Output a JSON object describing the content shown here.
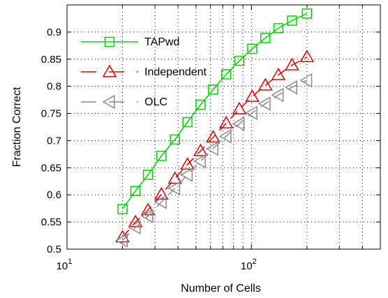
{
  "chart_data": {
    "type": "line",
    "xlabel": "Number of Cells",
    "ylabel": "Fraction Correct",
    "xscale": "log",
    "xlim": [
      10,
      500
    ],
    "ylim": [
      0.5,
      0.95
    ],
    "grid": true,
    "legend_placement": "top-left",
    "x_ticks": [
      {
        "value": 10,
        "base": "10",
        "exp": "1"
      },
      {
        "value": 100,
        "base": "10",
        "exp": "2"
      }
    ],
    "y_ticks": [
      {
        "value": 0.5,
        "label": "0.5"
      },
      {
        "value": 0.55,
        "label": "0.55"
      },
      {
        "value": 0.6,
        "label": "0.6"
      },
      {
        "value": 0.65,
        "label": "0.65"
      },
      {
        "value": 0.7,
        "label": "0.7"
      },
      {
        "value": 0.75,
        "label": "0.75"
      },
      {
        "value": 0.8,
        "label": "0.8"
      },
      {
        "value": 0.85,
        "label": "0.85"
      },
      {
        "value": 0.9,
        "label": "0.9"
      }
    ],
    "x": [
      20,
      23.5,
      27.5,
      32.5,
      38.5,
      45,
      53,
      62,
      73,
      86,
      101,
      119,
      140,
      166,
      200
    ],
    "series": [
      {
        "name": "TAPwd",
        "color": "#00d400",
        "dash": "solid",
        "marker": "square",
        "values": [
          0.574,
          0.607,
          0.637,
          0.672,
          0.702,
          0.734,
          0.766,
          0.794,
          0.822,
          0.847,
          0.869,
          0.889,
          0.907,
          0.921,
          0.934
        ]
      },
      {
        "name": "Independent",
        "color": "#e00000",
        "dash": "dashed",
        "marker": "triangle-up",
        "values": [
          0.522,
          0.55,
          0.572,
          0.601,
          0.63,
          0.656,
          0.681,
          0.706,
          0.732,
          0.758,
          0.781,
          0.802,
          0.821,
          0.839,
          0.854
        ]
      },
      {
        "name": "OLC",
        "color": "#8a8a8a",
        "dash": "dashed",
        "marker": "triangle-left",
        "values": [
          0.516,
          0.54,
          0.561,
          0.587,
          0.612,
          0.637,
          0.662,
          0.685,
          0.708,
          0.731,
          0.751,
          0.768,
          0.784,
          0.798,
          0.811
        ]
      }
    ]
  }
}
